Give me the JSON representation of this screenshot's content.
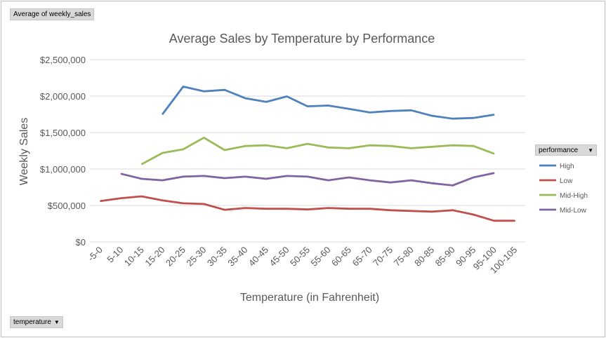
{
  "value_field_button": "Average of weekly_sales",
  "axis_field_button": "temperature",
  "legend_field_button": "performance",
  "colors": {
    "High": "#4f81bd",
    "Low": "#c0504d",
    "Mid-High": "#9bbb59",
    "Mid-Low": "#8064a2",
    "gridline": "#d9d9d9",
    "text": "#595959"
  },
  "chart_data": {
    "type": "line",
    "title": "Average Sales by Temperature by Performance",
    "xlabel": "Temperature (in Fahrenheit)",
    "ylabel": "Weekly Sales",
    "ylim": [
      0,
      2500000
    ],
    "yticks": [
      "$0",
      "$500,000",
      "$1,000,000",
      "$1,500,000",
      "$2,000,000",
      "$2,500,000"
    ],
    "ytick_values": [
      0,
      500000,
      1000000,
      1500000,
      2000000,
      2500000
    ],
    "grid": true,
    "legend_position": "right",
    "categories": [
      "-5-0",
      "5-10",
      "10-15",
      "15-20",
      "20-25",
      "25-30",
      "30-35",
      "35-40",
      "40-45",
      "45-50",
      "50-55",
      "55-60",
      "60-65",
      "65-70",
      "70-75",
      "75-80",
      "80-85",
      "85-90",
      "90-95",
      "95-100",
      "100-105"
    ],
    "series": [
      {
        "name": "High",
        "values": [
          null,
          null,
          null,
          1750000,
          2130000,
          2065000,
          2085000,
          1970000,
          1920000,
          1995000,
          1860000,
          1870000,
          1825000,
          1775000,
          1795000,
          1805000,
          1730000,
          1690000,
          1700000,
          1745000,
          null
        ]
      },
      {
        "name": "Low",
        "values": [
          560000,
          600000,
          625000,
          570000,
          530000,
          520000,
          440000,
          465000,
          455000,
          455000,
          445000,
          465000,
          455000,
          455000,
          435000,
          425000,
          415000,
          435000,
          375000,
          290000,
          290000
        ]
      },
      {
        "name": "Mid-High",
        "values": [
          null,
          null,
          1065000,
          1220000,
          1270000,
          1430000,
          1260000,
          1315000,
          1325000,
          1285000,
          1345000,
          1295000,
          1285000,
          1325000,
          1315000,
          1285000,
          1305000,
          1325000,
          1315000,
          1210000,
          null
        ]
      },
      {
        "name": "Mid-Low",
        "values": [
          null,
          935000,
          865000,
          845000,
          895000,
          905000,
          875000,
          895000,
          865000,
          905000,
          895000,
          845000,
          885000,
          845000,
          815000,
          845000,
          805000,
          775000,
          885000,
          945000,
          null
        ]
      }
    ]
  }
}
